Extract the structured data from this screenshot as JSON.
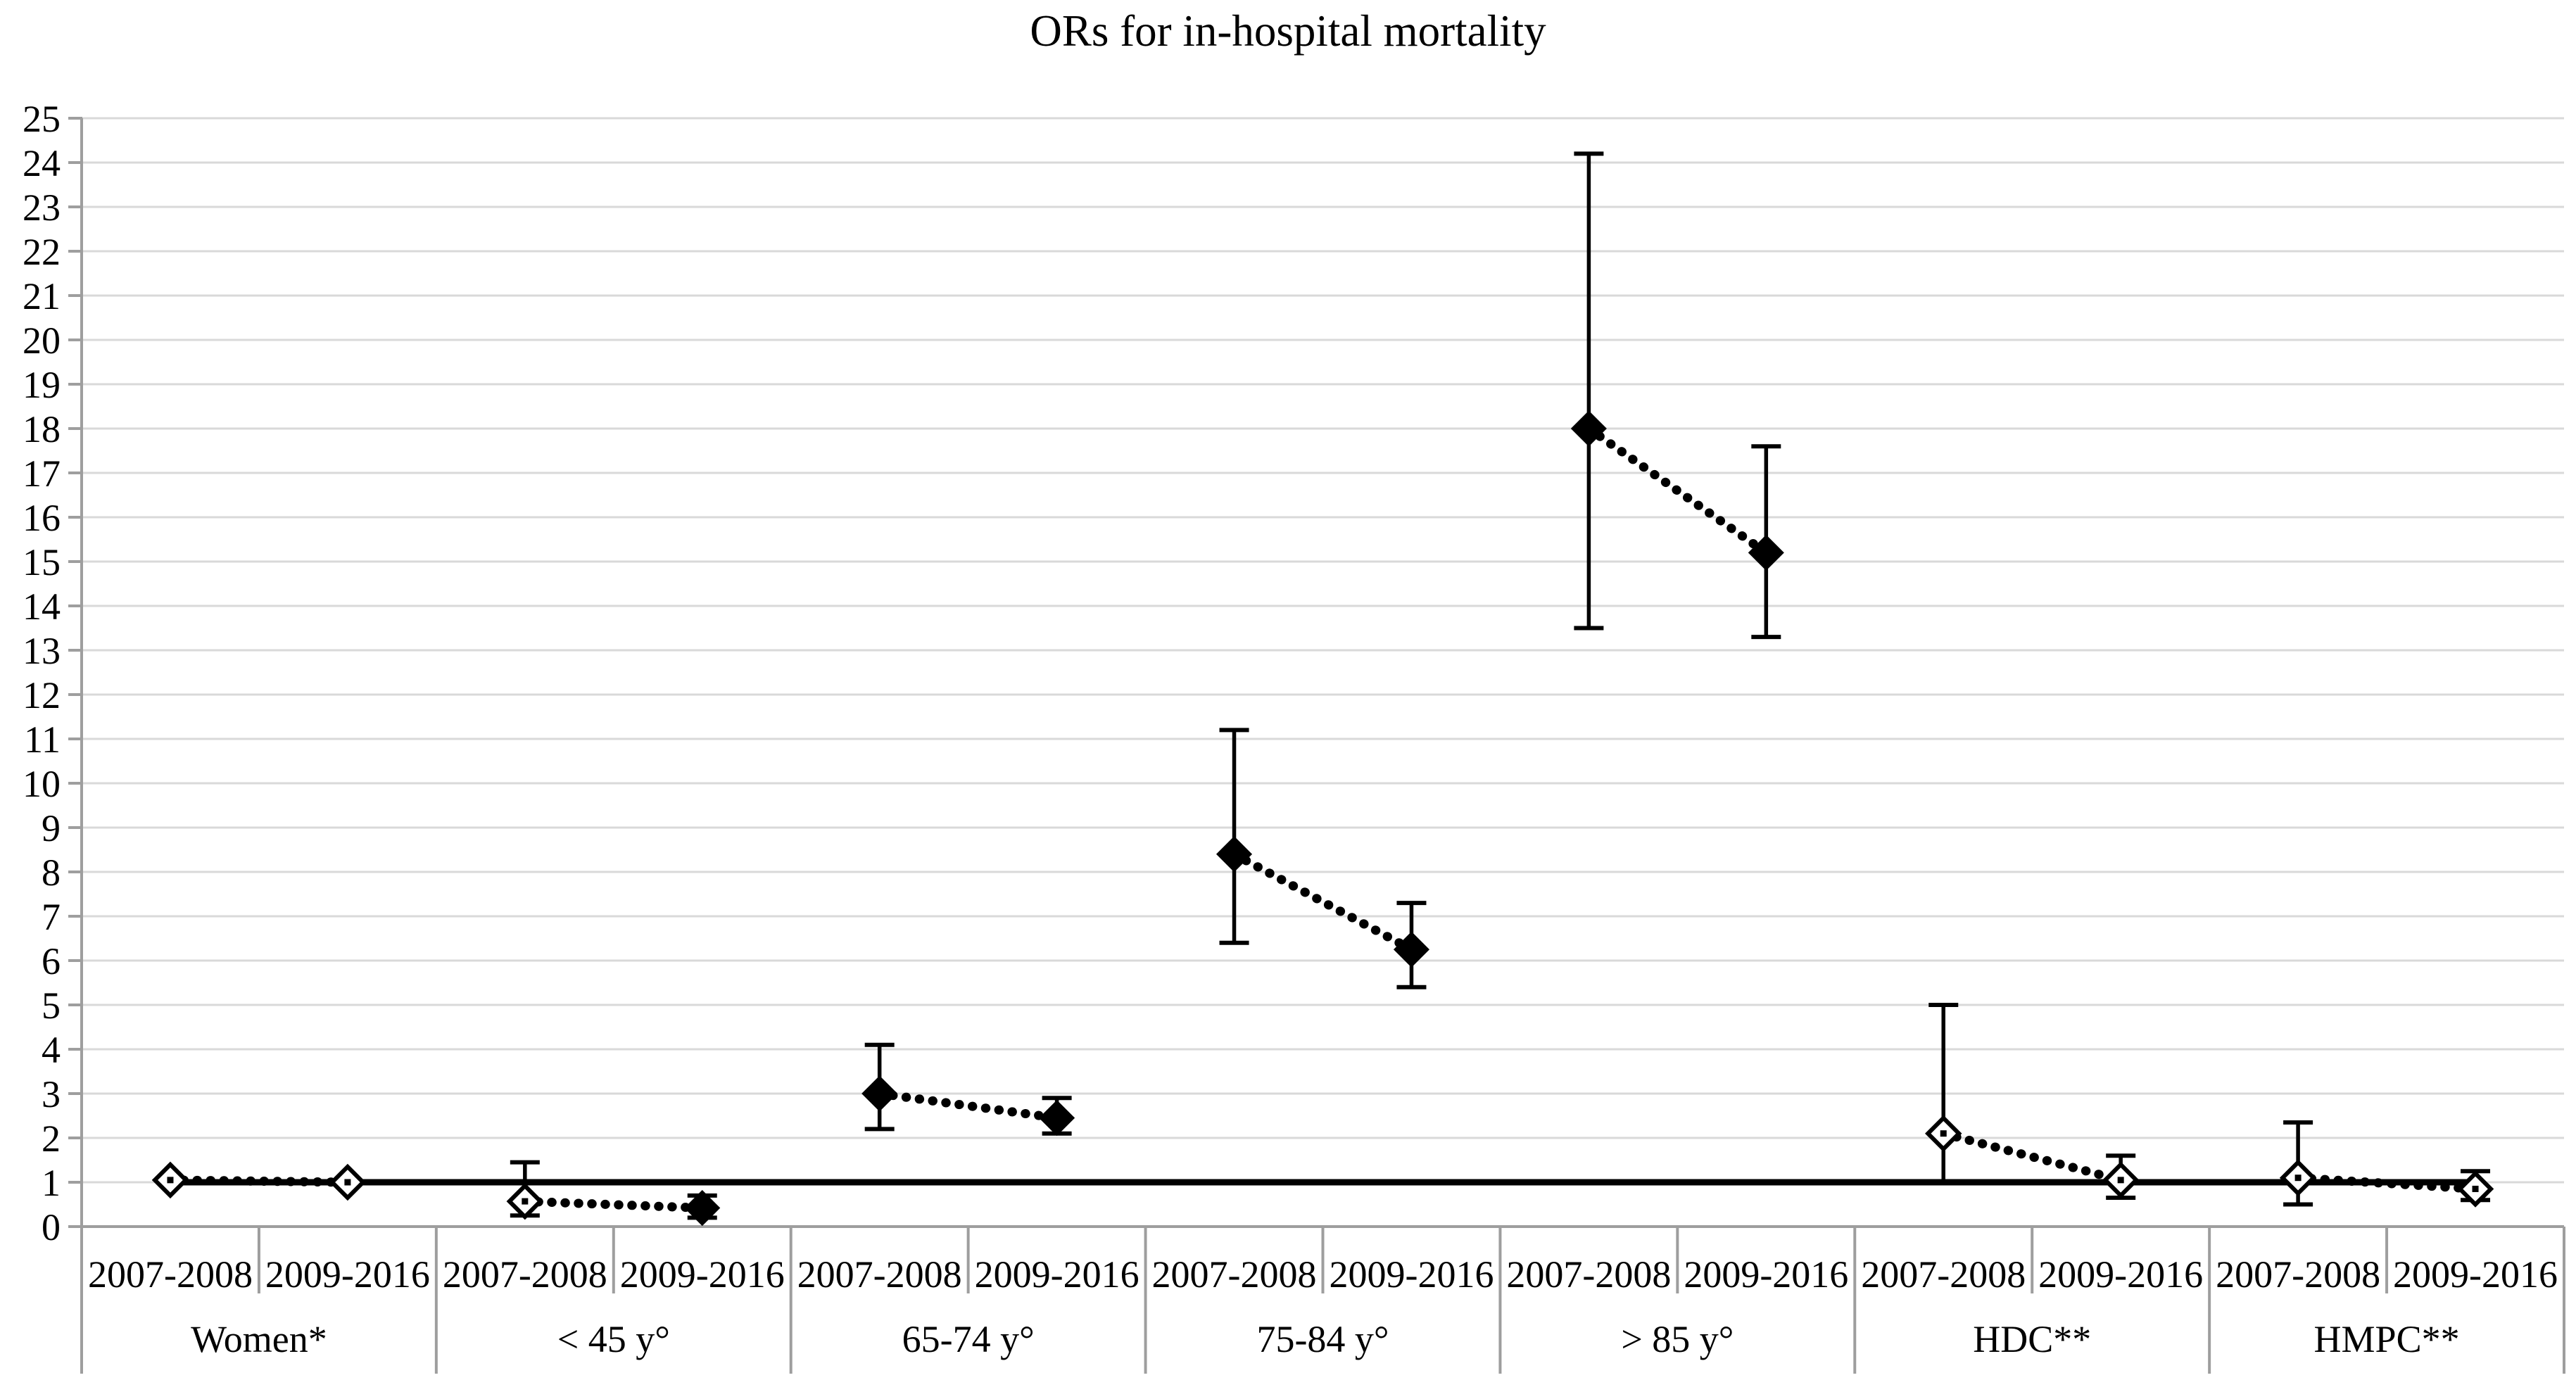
{
  "title": "ORs for in-hospital mortality",
  "colors": {
    "background": "#ffffff",
    "gridline": "#d9d9d9",
    "axis": "#9e9e9e",
    "ink": "#000000"
  },
  "chart_data": {
    "type": "scatter",
    "title": "ORs for in-hospital mortality",
    "xlabel": "",
    "ylabel": "",
    "ylim": [
      0,
      25
    ],
    "y_tick_interval": 1,
    "grid": "horizontal gridlines at every integer from 0 to 25",
    "legend_position": "none",
    "reference_line_y": 1.0,
    "marker_style": "diamond markers with vertical CI error bars; filled diamond = significant OR, open diamond = CI crosses 1; dotted line connects the two periods within each group; thick solid black line at OR = 1",
    "period_labels": [
      "2007-2008",
      "2009-2016"
    ],
    "groups": [
      {
        "label": "Women*",
        "points": [
          {
            "period": "2007-2008",
            "or": 1.05,
            "ci_low": null,
            "ci_high": null,
            "filled": false
          },
          {
            "period": "2009-2016",
            "or": 1.0,
            "ci_low": null,
            "ci_high": null,
            "filled": false
          }
        ]
      },
      {
        "label": "< 45 y°",
        "points": [
          {
            "period": "2007-2008",
            "or": 0.57,
            "ci_low": 0.25,
            "ci_high": 1.45,
            "filled": false
          },
          {
            "period": "2009-2016",
            "or": 0.42,
            "ci_low": 0.2,
            "ci_high": 0.7,
            "filled": true
          }
        ]
      },
      {
        "label": "65-74 y°",
        "points": [
          {
            "period": "2007-2008",
            "or": 3.0,
            "ci_low": 2.2,
            "ci_high": 4.1,
            "filled": true
          },
          {
            "period": "2009-2016",
            "or": 2.45,
            "ci_low": 2.1,
            "ci_high": 2.9,
            "filled": true
          }
        ]
      },
      {
        "label": "75-84 y°",
        "points": [
          {
            "period": "2007-2008",
            "or": 8.4,
            "ci_low": 6.4,
            "ci_high": 11.2,
            "filled": true
          },
          {
            "period": "2009-2016",
            "or": 6.25,
            "ci_low": 5.4,
            "ci_high": 7.3,
            "filled": true
          }
        ]
      },
      {
        "label": "> 85 y°",
        "points": [
          {
            "period": "2007-2008",
            "or": 18.0,
            "ci_low": 13.5,
            "ci_high": 24.2,
            "filled": true
          },
          {
            "period": "2009-2016",
            "or": 15.2,
            "ci_low": 13.3,
            "ci_high": 17.6,
            "filled": true
          }
        ]
      },
      {
        "label": "HDC**",
        "points": [
          {
            "period": "2007-2008",
            "or": 2.1,
            "ci_low": 1.0,
            "ci_high": 5.0,
            "filled": false
          },
          {
            "period": "2009-2016",
            "or": 1.05,
            "ci_low": 0.65,
            "ci_high": 1.6,
            "filled": false
          }
        ]
      },
      {
        "label": "HMPC**",
        "points": [
          {
            "period": "2007-2008",
            "or": 1.1,
            "ci_low": 0.5,
            "ci_high": 2.35,
            "filled": false
          },
          {
            "period": "2009-2016",
            "or": 0.85,
            "ci_low": 0.6,
            "ci_high": 1.25,
            "filled": false
          }
        ]
      }
    ]
  }
}
